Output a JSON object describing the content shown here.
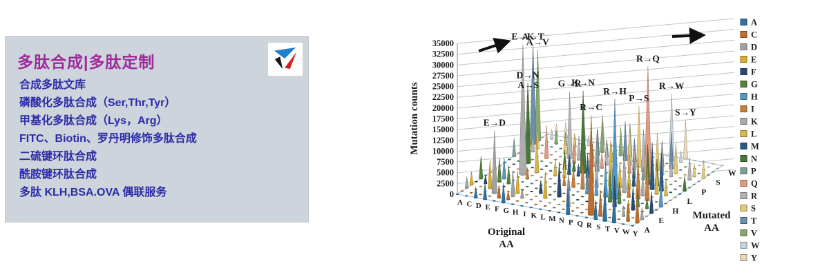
{
  "panel": {
    "title": "多肽合成|多肽定制",
    "title_color": "#9e2a9c",
    "item_color": "#2b2ba8",
    "panel_bg": "#ced4db",
    "logo_icon": "triangle-pinwheel",
    "logo_colors": {
      "blue": "#1e7fd0",
      "red": "#d81e20",
      "black": "#141414"
    },
    "items": [
      "合成多肽文库",
      "磷酸化多肽合成（Ser,Thr,Tyr）",
      "甲基化多肽合成（Lys，Arg）",
      "FITC、Biotin、罗丹明修饰多肽合成",
      "二硫键环肽合成",
      "酰胺键环肽合成",
      "多肽 KLH,BSA.OVA 偶联服务"
    ]
  },
  "chart_data": {
    "type": "bar",
    "subtype": "3d-cone-columns",
    "title": "",
    "ylabel": "Mutation counts",
    "xlabel": "Original AA",
    "zlabel": "Mutated AA",
    "ylim": [
      0,
      35000
    ],
    "ytick_step": 2500,
    "grid": true,
    "legend_position": "right",
    "arrow_annotations": [
      "up-right",
      "right"
    ],
    "categories": [
      "A",
      "C",
      "D",
      "E",
      "F",
      "G",
      "H",
      "I",
      "K",
      "L",
      "M",
      "N",
      "P",
      "Q",
      "R",
      "S",
      "T",
      "V",
      "W",
      "Y"
    ],
    "mutated_axis_ticks_shown": [
      "A",
      "E",
      "H",
      "L",
      "P",
      "S",
      "W"
    ],
    "series_colors": {
      "A": "#2e73a0",
      "C": "#bf6e2d",
      "D": "#a2a2a2",
      "E": "#d9ae2e",
      "F": "#2a4a73",
      "G": "#56843c",
      "H": "#5598c4",
      "I": "#c5803f",
      "K": "#acacac",
      "L": "#d9b84a",
      "M": "#2b5a87",
      "N": "#467937",
      "P": "#7fa098",
      "Q": "#e09b82",
      "R": "#b4b4b6",
      "S": "#e3c878",
      "T": "#6b8fac",
      "V": "#8aa86b",
      "W": "#c4d3dc",
      "Y": "#e9d7bc"
    },
    "labeled_peaks": [
      {
        "o": "E",
        "m": "D",
        "v": 14500,
        "label": "E→D"
      },
      {
        "o": "E",
        "m": "K",
        "v": 30000,
        "label": "E→K"
      },
      {
        "o": "A",
        "m": "T",
        "v": 23000,
        "label": "A→T"
      },
      {
        "o": "A",
        "m": "V",
        "v": 21000,
        "label": "A→V"
      },
      {
        "o": "D",
        "m": "N",
        "v": 18500,
        "label": "D→N"
      },
      {
        "o": "A",
        "m": "S",
        "v": 12500,
        "label": "A→S"
      },
      {
        "o": "G",
        "m": "R",
        "v": 15500,
        "label": "G→R"
      },
      {
        "o": "K",
        "m": "N",
        "v": 19000,
        "label": "K→N"
      },
      {
        "o": "R",
        "m": "C",
        "v": 23000,
        "label": "R→C"
      },
      {
        "o": "R",
        "m": "Q",
        "v": 25500,
        "label": "R→Q"
      },
      {
        "o": "R",
        "m": "H",
        "v": 23000,
        "label": "R→H"
      },
      {
        "o": "P",
        "m": "S",
        "v": 14000,
        "label": "P→S"
      },
      {
        "o": "R",
        "m": "W",
        "v": 15500,
        "label": "R→W"
      },
      {
        "o": "S",
        "m": "Y",
        "v": 9000,
        "label": "S→Y"
      }
    ],
    "spikes": [
      [
        "A",
        "G",
        5200
      ],
      [
        "A",
        "P",
        4200
      ],
      [
        "A",
        "E",
        3000
      ],
      [
        "A",
        "D",
        2600
      ],
      [
        "C",
        "R",
        3800
      ],
      [
        "C",
        "W",
        2200
      ],
      [
        "C",
        "Y",
        2800
      ],
      [
        "C",
        "F",
        1800
      ],
      [
        "C",
        "S",
        4500
      ],
      [
        "D",
        "E",
        6500
      ],
      [
        "D",
        "G",
        5500
      ],
      [
        "D",
        "H",
        4800
      ],
      [
        "D",
        "Y",
        3500
      ],
      [
        "D",
        "A",
        2500
      ],
      [
        "D",
        "V",
        3200
      ],
      [
        "E",
        "Q",
        7500
      ],
      [
        "E",
        "G",
        4200
      ],
      [
        "E",
        "A",
        3800
      ],
      [
        "E",
        "V",
        3000
      ],
      [
        "F",
        "L",
        8500
      ],
      [
        "F",
        "S",
        4000
      ],
      [
        "F",
        "C",
        3000
      ],
      [
        "F",
        "V",
        2800
      ],
      [
        "F",
        "I",
        2600
      ],
      [
        "F",
        "Y",
        3400
      ],
      [
        "G",
        "A",
        4500
      ],
      [
        "G",
        "S",
        5000
      ],
      [
        "G",
        "D",
        6000
      ],
      [
        "G",
        "V",
        3800
      ],
      [
        "G",
        "E",
        5200
      ],
      [
        "G",
        "W",
        2400
      ],
      [
        "G",
        "C",
        2000
      ],
      [
        "H",
        "Y",
        6800
      ],
      [
        "H",
        "R",
        5600
      ],
      [
        "H",
        "Q",
        4200
      ],
      [
        "H",
        "L",
        3600
      ],
      [
        "H",
        "P",
        2800
      ],
      [
        "H",
        "N",
        4400
      ],
      [
        "H",
        "D",
        2200
      ],
      [
        "I",
        "V",
        8000
      ],
      [
        "I",
        "T",
        6200
      ],
      [
        "I",
        "M",
        4500
      ],
      [
        "I",
        "L",
        3800
      ],
      [
        "I",
        "F",
        3000
      ],
      [
        "I",
        "N",
        2600
      ],
      [
        "I",
        "S",
        2200
      ],
      [
        "K",
        "R",
        7200
      ],
      [
        "K",
        "E",
        6000
      ],
      [
        "K",
        "Q",
        5200
      ],
      [
        "K",
        "T",
        4000
      ],
      [
        "K",
        "M",
        2800
      ],
      [
        "K",
        "I",
        2400
      ],
      [
        "L",
        "P",
        9500
      ],
      [
        "L",
        "F",
        8000
      ],
      [
        "L",
        "V",
        6500
      ],
      [
        "L",
        "M",
        5500
      ],
      [
        "L",
        "I",
        4800
      ],
      [
        "L",
        "S",
        4200
      ],
      [
        "L",
        "W",
        3000
      ],
      [
        "L",
        "R",
        5800
      ],
      [
        "L",
        "Q",
        3600
      ],
      [
        "L",
        "H",
        2800
      ],
      [
        "M",
        "I",
        6800
      ],
      [
        "M",
        "V",
        7800
      ],
      [
        "M",
        "T",
        9000
      ],
      [
        "M",
        "L",
        5200
      ],
      [
        "M",
        "K",
        3400
      ],
      [
        "M",
        "R",
        2800
      ],
      [
        "N",
        "S",
        8800
      ],
      [
        "N",
        "D",
        7600
      ],
      [
        "N",
        "K",
        6400
      ],
      [
        "N",
        "T",
        5400
      ],
      [
        "N",
        "H",
        4600
      ],
      [
        "N",
        "Y",
        3200
      ],
      [
        "N",
        "I",
        2600
      ],
      [
        "P",
        "L",
        10500
      ],
      [
        "P",
        "T",
        7000
      ],
      [
        "P",
        "A",
        6200
      ],
      [
        "P",
        "R",
        5400
      ],
      [
        "P",
        "Q",
        4400
      ],
      [
        "P",
        "H",
        3600
      ],
      [
        "Q",
        "R",
        9800
      ],
      [
        "Q",
        "H",
        8200
      ],
      [
        "Q",
        "K",
        7000
      ],
      [
        "Q",
        "L",
        5800
      ],
      [
        "Q",
        "P",
        4600
      ],
      [
        "Q",
        "E",
        6600
      ],
      [
        "R",
        "K",
        10200
      ],
      [
        "R",
        "S",
        8600
      ],
      [
        "R",
        "G",
        7400
      ],
      [
        "R",
        "T",
        6000
      ],
      [
        "R",
        "L",
        5000
      ],
      [
        "R",
        "M",
        4000
      ],
      [
        "R",
        "P",
        3000
      ],
      [
        "R",
        "I",
        2400
      ],
      [
        "S",
        "N",
        9200
      ],
      [
        "S",
        "T",
        8400
      ],
      [
        "S",
        "F",
        7000
      ],
      [
        "S",
        "C",
        6000
      ],
      [
        "S",
        "G",
        5000
      ],
      [
        "S",
        "A",
        4400
      ],
      [
        "S",
        "R",
        7600
      ],
      [
        "S",
        "L",
        5600
      ],
      [
        "S",
        "P",
        4800
      ],
      [
        "S",
        "W",
        2600
      ],
      [
        "S",
        "I",
        3400
      ],
      [
        "T",
        "M",
        10800
      ],
      [
        "T",
        "I",
        9400
      ],
      [
        "T",
        "A",
        8000
      ],
      [
        "T",
        "S",
        7200
      ],
      [
        "T",
        "N",
        6200
      ],
      [
        "T",
        "K",
        5000
      ],
      [
        "T",
        "R",
        4200
      ],
      [
        "T",
        "P",
        3400
      ],
      [
        "V",
        "I",
        9600
      ],
      [
        "V",
        "M",
        8800
      ],
      [
        "V",
        "A",
        7400
      ],
      [
        "V",
        "L",
        6400
      ],
      [
        "V",
        "F",
        5400
      ],
      [
        "V",
        "G",
        4000
      ],
      [
        "V",
        "E",
        3000
      ],
      [
        "V",
        "D",
        2400
      ],
      [
        "W",
        "R",
        5200
      ],
      [
        "W",
        "C",
        4000
      ],
      [
        "W",
        "S",
        3000
      ],
      [
        "W",
        "L",
        3800
      ],
      [
        "W",
        "G",
        2200
      ],
      [
        "Y",
        "C",
        6800
      ],
      [
        "Y",
        "H",
        5800
      ],
      [
        "Y",
        "F",
        5000
      ],
      [
        "Y",
        "S",
        4200
      ],
      [
        "Y",
        "N",
        3400
      ],
      [
        "Y",
        "D",
        2800
      ]
    ]
  }
}
